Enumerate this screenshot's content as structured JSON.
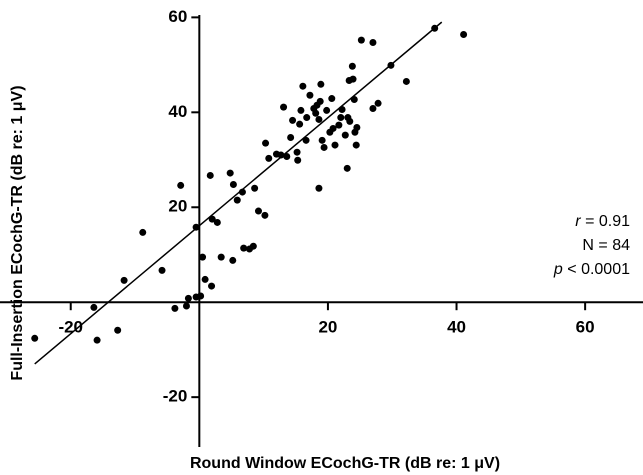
{
  "chart_data": {
    "type": "scatter",
    "x_label": "Round Window ECochG-TR (dB re: 1 μV)",
    "y_label": "Full-Insertion ECochG-TR (dB re: 1 μV)",
    "xlim": [
      -31,
      69
    ],
    "ylim": [
      -30.5,
      60.5
    ],
    "xticks": [
      -20,
      20,
      40,
      60
    ],
    "yticks": [
      -20,
      20,
      40,
      60
    ],
    "color": "#000000",
    "x": [
      -25.6,
      -15.9,
      -16.4,
      -12.7,
      -11.7,
      -8.8,
      -5.8,
      -3.8,
      -2.0,
      -1.7,
      -0.5,
      0.2,
      0.5,
      0.9,
      1.9,
      -2.9,
      -0.5,
      1.7,
      2.0,
      2.8,
      3.4,
      5.2,
      4.8,
      5.3,
      5.9,
      6.7,
      6.9,
      7.8,
      8.4,
      8.6,
      9.2,
      10.2,
      10.3,
      10.8,
      12.0,
      12.7,
      13.1,
      13.6,
      14.2,
      14.5,
      15.2,
      15.3,
      15.6,
      16.1,
      16.6,
      16.7,
      17.2,
      17.8,
      18.1,
      18.3,
      18.6,
      18.6,
      18.8,
      18.9,
      19.1,
      19.4,
      19.8,
      20.3,
      20.6,
      20.8,
      21.1,
      21.7,
      22.0,
      22.2,
      22.7,
      23.0,
      23.1,
      23.3,
      23.4,
      23.8,
      23.9,
      24.1,
      24.2,
      24.4,
      24.5,
      25.2,
      27.0,
      27.0,
      27.8,
      29.8,
      32.2,
      36.6,
      41.1,
      15.8
    ],
    "values": [
      -7.6,
      -8.0,
      -1.1,
      -5.9,
      4.6,
      14.7,
      6.7,
      -1.3,
      -0.8,
      0.8,
      1.1,
      1.3,
      9.5,
      4.8,
      3.4,
      24.6,
      15.8,
      26.7,
      17.5,
      16.8,
      9.5,
      8.8,
      27.2,
      24.8,
      21.5,
      23.2,
      11.4,
      11.2,
      11.8,
      24.0,
      19.2,
      18.3,
      33.5,
      30.3,
      31.2,
      31.0,
      41.1,
      30.7,
      34.7,
      38.3,
      31.6,
      29.9,
      37.5,
      45.5,
      34.1,
      38.9,
      43.6,
      40.8,
      39.8,
      41.5,
      24.0,
      38.5,
      42.3,
      45.9,
      34.1,
      32.6,
      40.4,
      35.8,
      42.9,
      36.6,
      33.1,
      37.3,
      38.9,
      40.6,
      35.2,
      28.2,
      38.9,
      46.7,
      38.1,
      49.7,
      47.0,
      42.7,
      35.8,
      33.1,
      36.8,
      55.2,
      54.7,
      40.8,
      41.9,
      49.9,
      46.5,
      57.7,
      56.4,
      40.4
    ],
    "regression_line": {
      "x": [
        -25.6,
        37.7
      ],
      "y": [
        -13,
        59
      ]
    },
    "stats": [
      {
        "symbol": "r",
        "text": " = 0.91"
      },
      {
        "text": "N = 84"
      },
      {
        "symbol": "p",
        "text": " < 0.0001"
      }
    ]
  }
}
